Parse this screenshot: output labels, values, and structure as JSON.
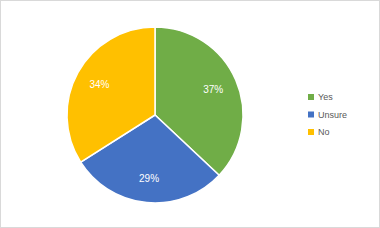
{
  "chart_data": {
    "type": "pie",
    "categories": [
      "Yes",
      "Unsure",
      "No"
    ],
    "values": [
      37,
      29,
      34
    ],
    "value_labels": [
      "37%",
      "29%",
      "34%"
    ],
    "colors": [
      "#70ad47",
      "#4472c4",
      "#ffc000"
    ],
    "data_labels": true,
    "legend": "right"
  }
}
